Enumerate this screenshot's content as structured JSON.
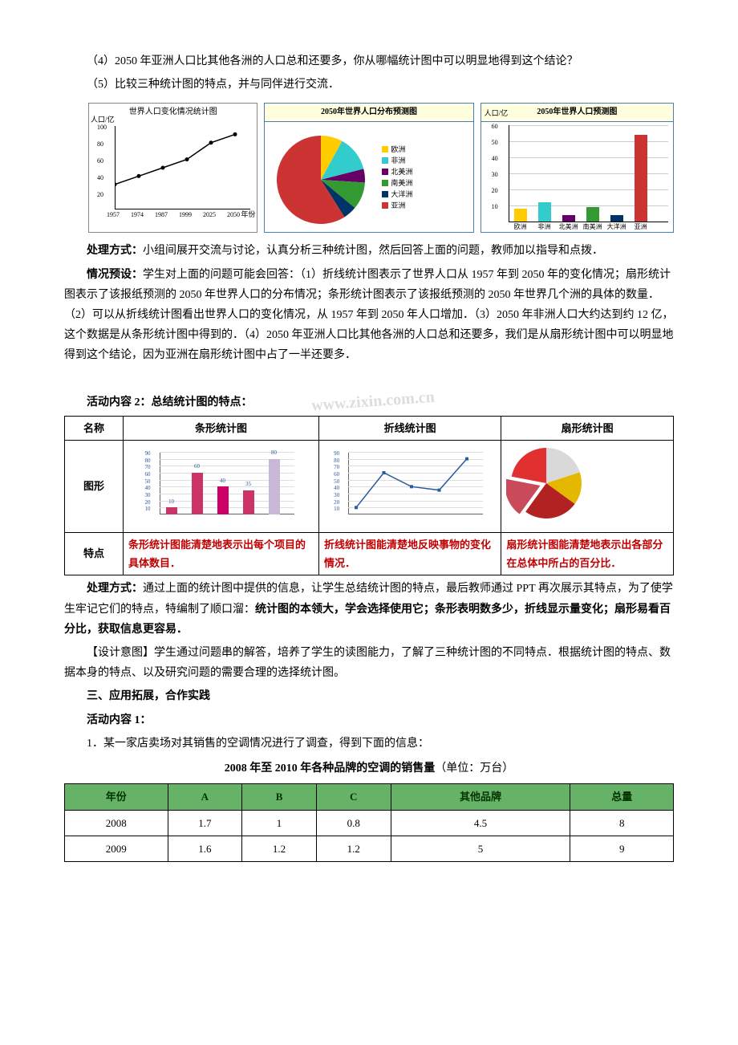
{
  "intro": {
    "q4": "（4）2050 年亚洲人口比其他各洲的人口总和还要多，你从哪幅统计图中可以明显地得到这个结论？",
    "q5": "（5）比较三种统计图的特点，并与同伴进行交流．"
  },
  "line_chart": {
    "title": "世界人口变化情况统计图",
    "ylabel": "人口/亿",
    "xlabel": "年份",
    "yticks": [
      20,
      40,
      60,
      80,
      100
    ],
    "xticks": [
      "1957",
      "1974",
      "1987",
      "1999",
      "2025",
      "2050"
    ],
    "values": [
      30,
      40,
      50,
      60,
      80,
      90
    ],
    "ymax": 100,
    "line_color": "#000000",
    "point_color": "#000000"
  },
  "pie_chart": {
    "title": "2050年世界人口分布预测图",
    "slices": [
      {
        "label": "欧洲",
        "value": 8,
        "color": "#ffcc00"
      },
      {
        "label": "非洲",
        "value": 13,
        "color": "#33cccc"
      },
      {
        "label": "北美洲",
        "value": 5,
        "color": "#660066"
      },
      {
        "label": "南美洲",
        "value": 10,
        "color": "#339933"
      },
      {
        "label": "大洋洲",
        "value": 5,
        "color": "#003366"
      },
      {
        "label": "亚洲",
        "value": 59,
        "color": "#cc3333"
      }
    ]
  },
  "bar_chart": {
    "title": "2050年世界人口预测图",
    "ylabel": "人口/亿",
    "yticks": [
      10,
      20,
      30,
      40,
      50,
      60
    ],
    "ymax": 60,
    "bars": [
      {
        "label": "欧洲",
        "value": 8,
        "color": "#ffcc00"
      },
      {
        "label": "非洲",
        "value": 12,
        "color": "#33cccc"
      },
      {
        "label": "北美洲",
        "value": 4,
        "color": "#660066"
      },
      {
        "label": "南美洲",
        "value": 9,
        "color": "#339933"
      },
      {
        "label": "大洋洲",
        "value": 4,
        "color": "#003366"
      },
      {
        "label": "亚洲",
        "value": 54,
        "color": "#cc3333"
      }
    ]
  },
  "handling1_label": "处理方式：",
  "handling1_text": "小组间展开交流与讨论，认真分析三种统计图，然后回答上面的问题，教师加以指导和点拨．",
  "preset_label": "情况预设：",
  "preset_text": "学生对上面的问题可能会回答：（1）折线统计图表示了世界人口从 1957 年到 2050 年的变化情况；扇形统计图表示了该报纸预测的 2050 年世界人口的分布情况；条形统计图表示了该报纸预测的 2050 年世界几个洲的具体的数量．（2）可以从折线统计图看出世界人口的变化情况，从 1957 年到 2050 年人口增加．（3）2050 年非洲人口大约达到约 12 亿，这个数据是从条形统计图中得到的．（4）2050 年亚洲人口比其他各洲的人口总和还要多，我们是从扇形统计图中可以明显地得到这个结论，因为亚洲在扇形统计图中占了一半还要多．",
  "activity2_title": "活动内容 2：总结统计图的特点：",
  "summary": {
    "headers": [
      "名称",
      "条形统计图",
      "折线统计图",
      "扇形统计图"
    ],
    "row_shape": "图形",
    "row_feat": "特点",
    "feat_bar": "条形统计图能清楚地表示出每个项目的具体数目．",
    "feat_line": "折线统计图能清楚地反映事物的变化情况．",
    "feat_pie": "扇形统计图能清楚地表示出各部分在总体中所占的百分比．",
    "mini_bar": {
      "values": [
        10,
        60,
        40,
        35,
        80
      ],
      "colors": [
        "#cc3366",
        "#cc3366",
        "#cc0066",
        "#cc3366",
        "#c8b8d8"
      ],
      "ymax": 90,
      "yticks": [
        10,
        20,
        30,
        40,
        50,
        60,
        70,
        80,
        90
      ],
      "label_color": "#2a5aa0"
    },
    "mini_line": {
      "values": [
        10,
        60,
        40,
        35,
        80
      ],
      "ymax": 90,
      "yticks": [
        10,
        20,
        30,
        40,
        50,
        60,
        70,
        80,
        90
      ],
      "line_color": "#2a5aa0"
    },
    "mini_pie": {
      "slices": [
        {
          "value": 20,
          "color": "#d9d9d9"
        },
        {
          "value": 15,
          "color": "#e5b800"
        },
        {
          "value": 25,
          "color": "#b22222"
        },
        {
          "value": 18,
          "color": "#c94a5a"
        },
        {
          "value": 22,
          "color": "#e03030"
        }
      ]
    }
  },
  "handling2_label": "处理方式：",
  "handling2_text_a": "通过上面的统计图中提供的信息，让学生总结统计图的特点，最后教师通过 PPT 再次展示其特点，为了使学生牢记它们的特点，特编制了顺口溜：",
  "handling2_text_b": "统计图的本领大，学会选择使用它；条形表明数多少，折线显示量变化；扇形易看百分比，获取信息更容易．",
  "design_label": "【设计意图】",
  "design_text": "学生通过问题串的解答，培养了学生的读图能力，了解了三种统计图的不同特点．根据统计图的特点、数据本身的特点、以及研究问题的需要合理的选择统计图。",
  "section3": "三、应用拓展，合作实践",
  "activity1": "活动内容 1：",
  "q1": "1．某一家店卖场对其销售的空调情况进行了调查，得到下面的信息：",
  "sales_caption_a": "2008 年至 2010 年各种品牌的空调的销售量",
  "sales_caption_b": "（单位：万台）",
  "sales": {
    "headers": [
      "年份",
      "A",
      "B",
      "C",
      "其他品牌",
      "总量"
    ],
    "rows": [
      [
        "2008",
        "1.7",
        "1",
        "0.8",
        "4.5",
        "8"
      ],
      [
        "2009",
        "1.6",
        "1.2",
        "1.2",
        "5",
        "9"
      ]
    ],
    "header_bg": "#66b266"
  },
  "watermark": "www.zixin.com.cn"
}
